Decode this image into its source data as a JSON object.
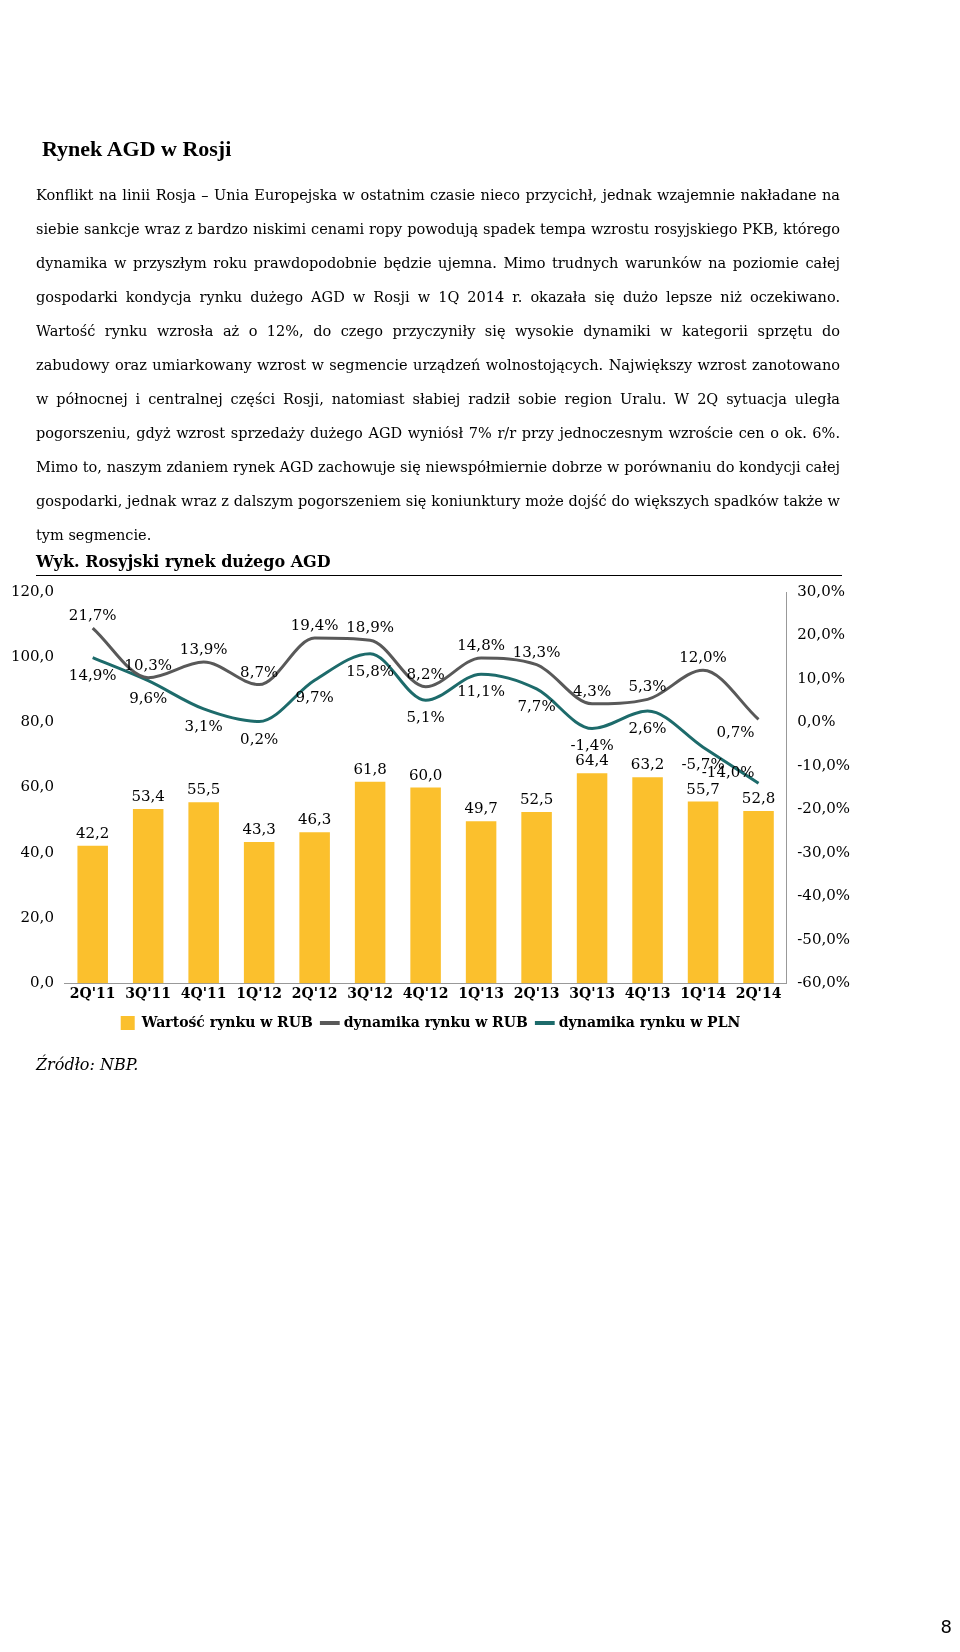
{
  "chart_data": {
    "type": "bar",
    "title": "Rynek AGD w Rosji",
    "subtitle": "Wyk. Rosyjski rynek dużego AGD",
    "annotations": [
      "Konflikt na linii Rosja – Unia Europejska w ostatnim czasie nieco przycichł, jednak wzajemnie nakładane na siebie sankcje wraz z bardzo niskimi cenami ropy powodują spadek tempa wzrostu rosyjskiego PKB, którego dynamika w przyszłym roku prawdopodobnie będzie ujemna. Mimo trudnych warunków na poziomie całej gospodarki kondycja rynku dużego AGD w Rosji w 1Q 2014 r. okazała się dużo lepsze niż oczekiwano. Wartość rynku wzrosła aż o 12%, do czego przyczyniły się wysokie dynamiki w kategorii sprzętu do zabudowy oraz umiarkowany wzrost w segmencie urządzeń wolnostojących. Największy wzrost zanotowano w północnej i centralnej części Rosji, natomiast słabiej radził sobie region Uralu. W 2Q sytuacja uległa pogorszeniu, gdyż wzrost sprzedaży dużego AGD wyniósł 7% r/r przy jednoczesnym wzroście cen o ok. 6%. Mimo to, naszym zdaniem rynek AGD zachowuje się niewspółmiernie dobrze w porównaniu do kondycji całej gospodarki, jednak wraz z dalszym pogorszeniem się koniunktury może dojść do większych spadków także w tym segmencie.",
      "Źródło: NBP.",
      "8"
    ],
    "categories": [
      "2Q'11",
      "3Q'11",
      "4Q'11",
      "1Q'12",
      "2Q'12",
      "3Q'12",
      "4Q'12",
      "1Q'13",
      "2Q'13",
      "3Q'13",
      "4Q'13",
      "1Q'14",
      "2Q'14"
    ],
    "series": [
      {
        "name": "Wartość rynku w RUB",
        "color": "#fbc02d",
        "values": [
          42.2,
          53.4,
          55.5,
          43.3,
          46.3,
          61.8,
          60.0,
          49.7,
          52.5,
          64.4,
          63.2,
          55.7,
          52.8
        ],
        "value_labels": [
          "42,2",
          "53,4",
          "55,5",
          "43,3",
          "46,3",
          "61,8",
          "60,0",
          "49,7",
          "52,5",
          "64,4",
          "63,2",
          "55,7",
          "52,8"
        ]
      },
      {
        "name": "dynamika rynku w RUB",
        "type": "line",
        "axis": "y2",
        "color": "#595959",
        "values": [
          21.7,
          10.3,
          13.9,
          8.7,
          19.4,
          18.9,
          8.2,
          14.8,
          13.3,
          4.3,
          5.3,
          12.0,
          0.7
        ],
        "value_labels": [
          "21,7%",
          "10,3%",
          "13,9%",
          "8,7%",
          "19,4%",
          "18,9%",
          "8,2%",
          "14,8%",
          "13,3%",
          "4,3%",
          "5,3%",
          "12,0%",
          "0,7%"
        ]
      },
      {
        "name": "dynamika rynku w PLN",
        "type": "line",
        "axis": "y2",
        "color": "#1d6b6b",
        "values": [
          14.9,
          9.6,
          3.1,
          0.2,
          9.7,
          15.8,
          5.1,
          11.1,
          7.7,
          -1.4,
          2.6,
          -5.7,
          -14.0
        ],
        "value_labels": [
          "14,9%",
          "9,6%",
          "3,1%",
          "0,2%",
          "9,7%",
          "15,8%",
          "5,1%",
          "11,1%",
          "7,7%",
          "-1,4%",
          "2,6%",
          "-5,7%",
          "-14,0%"
        ]
      }
    ],
    "ylim": [
      0,
      120
    ],
    "yticks": [
      {
        "value": 0,
        "label": "0,0"
      },
      {
        "value": 20,
        "label": "20,0"
      },
      {
        "value": 40,
        "label": "40,0"
      },
      {
        "value": 60,
        "label": "60,0"
      },
      {
        "value": 80,
        "label": "80,0"
      },
      {
        "value": 100,
        "label": "100,0"
      },
      {
        "value": 120,
        "label": "120,0"
      }
    ],
    "y2lim": [
      -60,
      30
    ],
    "y2ticks": [
      {
        "value": -60,
        "label": "-60,0%"
      },
      {
        "value": -50,
        "label": "-50,0%"
      },
      {
        "value": -40,
        "label": "-40,0%"
      },
      {
        "value": -30,
        "label": "-30,0%"
      },
      {
        "value": -20,
        "label": "-20,0%"
      },
      {
        "value": -10,
        "label": "-10,0%"
      },
      {
        "value": 0,
        "label": "0,0%"
      },
      {
        "value": 10,
        "label": "10,0%"
      },
      {
        "value": 20,
        "label": "20,0%"
      },
      {
        "value": 30,
        "label": "30,0%"
      }
    ],
    "legend": "bottom",
    "grid": false,
    "marker": "none",
    "line_style": "solid"
  }
}
